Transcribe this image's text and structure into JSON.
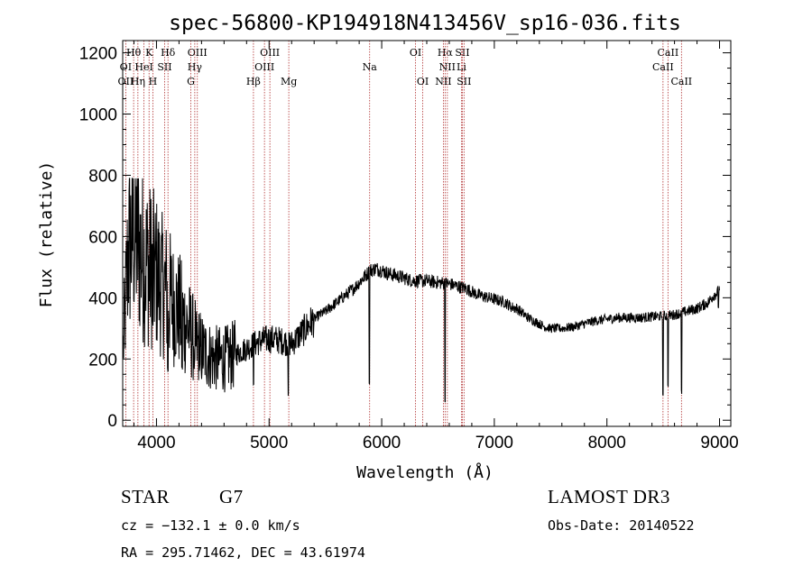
{
  "chart_data": {
    "type": "line",
    "title": "spec-56800-KP194918N413456V_sp16-036.fits",
    "xlabel": "Wavelength (Å)",
    "ylabel": "Flux (relative)",
    "xlim": [
      3700,
      9100
    ],
    "ylim": [
      -20,
      1240
    ],
    "xticks": [
      4000,
      5000,
      6000,
      7000,
      8000,
      9000
    ],
    "yticks": [
      0,
      200,
      400,
      600,
      800,
      1000,
      1200
    ],
    "grid": false,
    "line_color": "#000000",
    "marker_color": "#b03030",
    "continuum": [
      [
        3700,
        200
      ],
      [
        3750,
        560
      ],
      [
        3800,
        620
      ],
      [
        3850,
        560
      ],
      [
        3900,
        520
      ],
      [
        3950,
        500
      ],
      [
        4000,
        480
      ],
      [
        4050,
        440
      ],
      [
        4100,
        420
      ],
      [
        4150,
        380
      ],
      [
        4200,
        360
      ],
      [
        4250,
        320
      ],
      [
        4300,
        290
      ],
      [
        4350,
        250
      ],
      [
        4400,
        230
      ],
      [
        4450,
        215
      ],
      [
        4500,
        205
      ],
      [
        4550,
        200
      ],
      [
        4600,
        200
      ],
      [
        4650,
        205
      ],
      [
        4700,
        215
      ],
      [
        4750,
        225
      ],
      [
        4800,
        235
      ],
      [
        4850,
        245
      ],
      [
        4900,
        255
      ],
      [
        4950,
        262
      ],
      [
        5000,
        265
      ],
      [
        5050,
        265
      ],
      [
        5100,
        260
      ],
      [
        5150,
        255
      ],
      [
        5200,
        250
      ],
      [
        5250,
        270
      ],
      [
        5300,
        290
      ],
      [
        5350,
        310
      ],
      [
        5400,
        330
      ],
      [
        5450,
        345
      ],
      [
        5500,
        355
      ],
      [
        5550,
        370
      ],
      [
        5600,
        385
      ],
      [
        5650,
        400
      ],
      [
        5700,
        415
      ],
      [
        5750,
        430
      ],
      [
        5800,
        450
      ],
      [
        5850,
        470
      ],
      [
        5900,
        490
      ],
      [
        5950,
        495
      ],
      [
        6000,
        490
      ],
      [
        6050,
        480
      ],
      [
        6100,
        475
      ],
      [
        6150,
        470
      ],
      [
        6200,
        465
      ],
      [
        6250,
        458
      ],
      [
        6300,
        455
      ],
      [
        6350,
        455
      ],
      [
        6400,
        455
      ],
      [
        6450,
        452
      ],
      [
        6500,
        450
      ],
      [
        6550,
        448
      ],
      [
        6600,
        445
      ],
      [
        6650,
        440
      ],
      [
        6700,
        435
      ],
      [
        6750,
        430
      ],
      [
        6800,
        420
      ],
      [
        6850,
        410
      ],
      [
        6900,
        405
      ],
      [
        6950,
        400
      ],
      [
        7000,
        395
      ],
      [
        7050,
        390
      ],
      [
        7100,
        385
      ],
      [
        7150,
        370
      ],
      [
        7200,
        365
      ],
      [
        7250,
        350
      ],
      [
        7300,
        335
      ],
      [
        7350,
        325
      ],
      [
        7400,
        315
      ],
      [
        7450,
        305
      ],
      [
        7500,
        300
      ],
      [
        7550,
        300
      ],
      [
        7600,
        300
      ],
      [
        7700,
        305
      ],
      [
        7800,
        315
      ],
      [
        7900,
        325
      ],
      [
        8000,
        330
      ],
      [
        8100,
        335
      ],
      [
        8200,
        335
      ],
      [
        8300,
        335
      ],
      [
        8400,
        338
      ],
      [
        8500,
        340
      ],
      [
        8600,
        345
      ],
      [
        8700,
        355
      ],
      [
        8800,
        365
      ],
      [
        8900,
        385
      ],
      [
        8950,
        410
      ],
      [
        9000,
        420
      ]
    ],
    "absorption_dips": [
      [
        3934,
        380
      ],
      [
        3968,
        300
      ],
      [
        4101,
        150
      ],
      [
        4227,
        150
      ],
      [
        4340,
        180
      ],
      [
        4383,
        160
      ],
      [
        4861,
        110
      ],
      [
        5170,
        70
      ],
      [
        5890,
        100
      ],
      [
        6563,
        60
      ],
      [
        8498,
        60
      ],
      [
        8542,
        90
      ],
      [
        8662,
        80
      ],
      [
        8990,
        360
      ]
    ],
    "spectral_lines": [
      {
        "label": "Hθ",
        "wavelength": 3797,
        "row": 0
      },
      {
        "label": "K",
        "wavelength": 3934,
        "row": 0
      },
      {
        "label": "Hδ",
        "wavelength": 4102,
        "row": 0
      },
      {
        "label": "OIII",
        "wavelength": 4363,
        "row": 0
      },
      {
        "label": "OIII",
        "wavelength": 5007,
        "row": 0
      },
      {
        "label": "OI",
        "wavelength": 6300,
        "row": 0
      },
      {
        "label": "Hα",
        "wavelength": 6563,
        "row": 0
      },
      {
        "label": "SII",
        "wavelength": 6716,
        "row": 0
      },
      {
        "label": "CaII",
        "wavelength": 8542,
        "row": 0
      },
      {
        "label": "OI",
        "wavelength": 3727,
        "row": 1
      },
      {
        "label": "HeI",
        "wavelength": 3889,
        "row": 1
      },
      {
        "label": "SII",
        "wavelength": 4072,
        "row": 1
      },
      {
        "label": "Hγ",
        "wavelength": 4340,
        "row": 1
      },
      {
        "label": "OIII",
        "wavelength": 4959,
        "row": 1
      },
      {
        "label": "Na",
        "wavelength": 5893,
        "row": 1
      },
      {
        "label": "NII",
        "wavelength": 6583,
        "row": 1
      },
      {
        "label": "Li",
        "wavelength": 6708,
        "row": 1
      },
      {
        "label": "CaII",
        "wavelength": 8498,
        "row": 1
      },
      {
        "label": "OII",
        "wavelength": 3727,
        "row": 2
      },
      {
        "label": "Hη",
        "wavelength": 3835,
        "row": 2
      },
      {
        "label": "H",
        "wavelength": 3968,
        "row": 2
      },
      {
        "label": "G",
        "wavelength": 4305,
        "row": 2
      },
      {
        "label": "Hβ",
        "wavelength": 4861,
        "row": 2
      },
      {
        "label": "Mg",
        "wavelength": 5175,
        "row": 2
      },
      {
        "label": "OI",
        "wavelength": 6364,
        "row": 2
      },
      {
        "label": "NII",
        "wavelength": 6548,
        "row": 2
      },
      {
        "label": "SII",
        "wavelength": 6731,
        "row": 2
      },
      {
        "label": "CaII",
        "wavelength": 8662,
        "row": 2
      }
    ]
  },
  "info": {
    "object_class": "STAR",
    "subclass": "G7",
    "survey": "LAMOST DR3",
    "redshift": "cz = −132.1 ± 0.0 km/s",
    "obs_date": "Obs-Date: 20140522",
    "coords": "RA = 295.71462, DEC =  43.61974"
  }
}
